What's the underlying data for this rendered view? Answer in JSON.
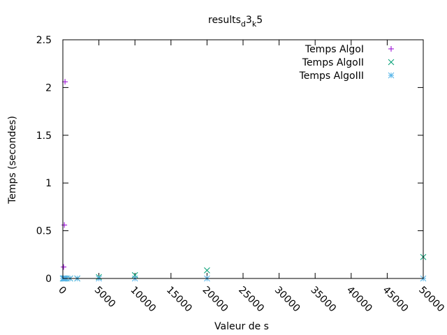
{
  "chart_data": {
    "type": "scatter",
    "title": "results",
    "title_sub1": "d",
    "title_mid": "3",
    "title_sub2": "k",
    "title_end": "5",
    "xlabel": "Valeur de s",
    "ylabel": "Temps (secondes)",
    "xlim": [
      0,
      50000
    ],
    "ylim": [
      0,
      2.5
    ],
    "xticks": [
      0,
      5000,
      10000,
      15000,
      20000,
      25000,
      30000,
      35000,
      40000,
      45000,
      50000
    ],
    "yticks": [
      {
        "value": 0,
        "label": "0"
      },
      {
        "value": 0.5,
        "label": "0.5"
      },
      {
        "value": 1,
        "label": "1"
      },
      {
        "value": 1.5,
        "label": "1.5"
      },
      {
        "value": 2,
        "label": "2"
      },
      {
        "value": 2.5,
        "label": "2.5"
      }
    ],
    "grid": false,
    "legend_position": "top-right",
    "series": [
      {
        "name": "Temps AlgoI",
        "marker": "plus",
        "color": "#9400d3",
        "points": [
          [
            100,
            0.12
          ],
          [
            200,
            0.56
          ],
          [
            300,
            2.06
          ]
        ]
      },
      {
        "name": "Temps AlgoII",
        "marker": "cross",
        "color": "#009e73",
        "points": [
          [
            0,
            0.0
          ],
          [
            100,
            0.0
          ],
          [
            200,
            0.0
          ],
          [
            300,
            0.0
          ],
          [
            500,
            0.0
          ],
          [
            1000,
            0.0
          ],
          [
            2000,
            0.0
          ],
          [
            5000,
            0.015
          ],
          [
            10000,
            0.035
          ],
          [
            20000,
            0.085
          ],
          [
            50000,
            0.225
          ]
        ]
      },
      {
        "name": "Temps AlgoIII",
        "marker": "star",
        "color": "#56b4e9",
        "points": [
          [
            0,
            0.0
          ],
          [
            100,
            0.0
          ],
          [
            200,
            0.0
          ],
          [
            300,
            0.0
          ],
          [
            500,
            0.0
          ],
          [
            1000,
            0.0
          ],
          [
            2000,
            0.0
          ],
          [
            5000,
            0.0
          ],
          [
            10000,
            0.0
          ],
          [
            20000,
            0.0
          ],
          [
            50000,
            0.0
          ]
        ]
      }
    ]
  }
}
